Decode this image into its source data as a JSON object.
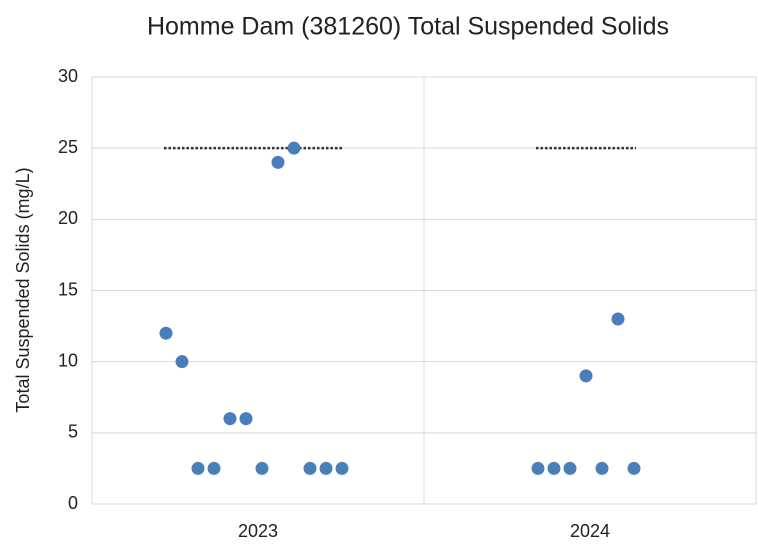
{
  "chart_data": {
    "type": "scatter",
    "title": "Homme Dam (381260) Total Suspended Solids",
    "y_label": "Total Suspended Solids (mg/L)",
    "categories": [
      "2023",
      "2024"
    ],
    "values": [
      [
        12,
        10,
        2.5,
        2.5,
        6,
        6,
        2.5,
        24,
        25,
        2.5,
        2.5,
        2.5
      ],
      [
        2.5,
        2.5,
        2.5,
        9,
        2.5,
        13,
        2.5
      ]
    ],
    "color": "#4a7ebb",
    "reference_value": 25,
    "ylim": [
      0,
      30
    ],
    "yticks": [
      0,
      5,
      10,
      15,
      20,
      25,
      30
    ],
    "grid": true
  }
}
